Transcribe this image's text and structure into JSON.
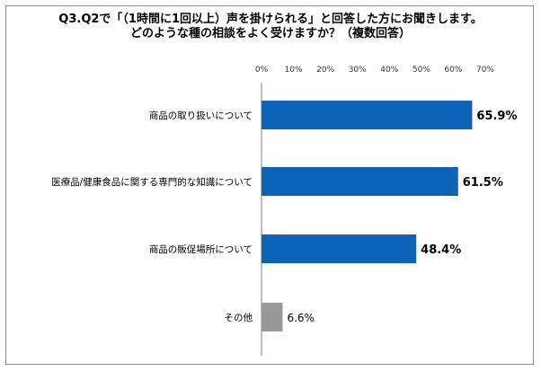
{
  "title": {
    "line1": "Q3.Q2で「（1時間に1回以上）声を掛けられる」と回答した方にお聞きします。",
    "line2": "どのような種の相談をよく受けますか？（複数回答）"
  },
  "chart_data": {
    "type": "bar",
    "orientation": "horizontal",
    "categories": [
      "商品の取り扱いについて",
      "医療品/健康食品に関する専門的な知識について",
      "商品の販促場所について",
      "その他"
    ],
    "values": [
      65.9,
      61.5,
      48.4,
      6.6
    ],
    "value_labels": [
      "65.9%",
      "61.5%",
      "48.4%",
      "6.6%"
    ],
    "xlim": [
      0,
      70
    ],
    "xticks": [
      "0%",
      "10%",
      "20%",
      "30%",
      "40%",
      "50%",
      "60%",
      "70%"
    ],
    "xtick_values": [
      0,
      10,
      20,
      30,
      40,
      50,
      60,
      70
    ],
    "colors": [
      "#0b64b8",
      "#0b64b8",
      "#0b64b8",
      "#999999"
    ],
    "value_label_bold": [
      true,
      true,
      true,
      false
    ],
    "grid": false
  }
}
